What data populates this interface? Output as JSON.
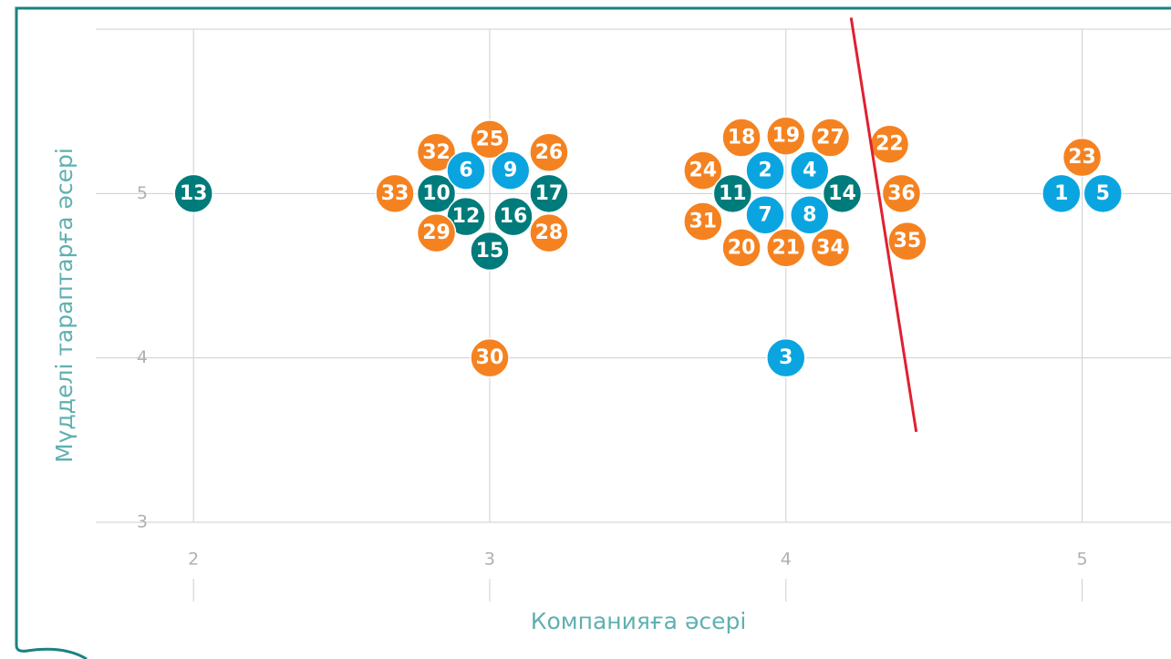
{
  "chart_data": {
    "type": "scatter",
    "x_label": "Компанияға әсері",
    "y_label": "Мүдделі тараптарға әсері",
    "xlim": [
      1.67,
      5.3
    ],
    "xticks": [
      2,
      3,
      4,
      5
    ],
    "ylim": [
      3,
      6
    ],
    "yticks": [
      3,
      4,
      5
    ],
    "grid": true,
    "points": [
      {
        "label": "13",
        "x": 2.0,
        "y": 5.0,
        "color": "#007b7b"
      },
      {
        "label": "33",
        "x": 2.68,
        "y": 5.0,
        "color": "#f58220"
      },
      {
        "label": "10",
        "x": 2.82,
        "y": 5.0,
        "color": "#007b7b"
      },
      {
        "label": "32",
        "x": 2.82,
        "y": 5.25,
        "color": "#f58220"
      },
      {
        "label": "6",
        "x": 2.92,
        "y": 5.14,
        "color": "#0aa5e0"
      },
      {
        "label": "25",
        "x": 3.0,
        "y": 5.33,
        "color": "#f58220"
      },
      {
        "label": "9",
        "x": 3.07,
        "y": 5.14,
        "color": "#0aa5e0"
      },
      {
        "label": "26",
        "x": 3.2,
        "y": 5.25,
        "color": "#f58220"
      },
      {
        "label": "17",
        "x": 3.2,
        "y": 5.0,
        "color": "#007b7b"
      },
      {
        "label": "12",
        "x": 2.92,
        "y": 4.86,
        "color": "#007b7b"
      },
      {
        "label": "16",
        "x": 3.08,
        "y": 4.86,
        "color": "#007b7b"
      },
      {
        "label": "29",
        "x": 2.82,
        "y": 4.76,
        "color": "#f58220"
      },
      {
        "label": "28",
        "x": 3.2,
        "y": 4.76,
        "color": "#f58220"
      },
      {
        "label": "15",
        "x": 3.0,
        "y": 4.65,
        "color": "#007b7b"
      },
      {
        "label": "30",
        "x": 3.0,
        "y": 4.0,
        "color": "#f58220"
      },
      {
        "label": "18",
        "x": 3.85,
        "y": 5.34,
        "color": "#f58220"
      },
      {
        "label": "19",
        "x": 4.0,
        "y": 5.35,
        "color": "#f58220"
      },
      {
        "label": "27",
        "x": 4.15,
        "y": 5.34,
        "color": "#f58220"
      },
      {
        "label": "22",
        "x": 4.35,
        "y": 5.3,
        "color": "#f58220"
      },
      {
        "label": "24",
        "x": 3.72,
        "y": 5.14,
        "color": "#f58220"
      },
      {
        "label": "2",
        "x": 3.93,
        "y": 5.14,
        "color": "#0aa5e0"
      },
      {
        "label": "4",
        "x": 4.08,
        "y": 5.14,
        "color": "#0aa5e0"
      },
      {
        "label": "11",
        "x": 3.82,
        "y": 5.0,
        "color": "#007b7b"
      },
      {
        "label": "14",
        "x": 4.19,
        "y": 5.0,
        "color": "#007b7b"
      },
      {
        "label": "36",
        "x": 4.39,
        "y": 5.0,
        "color": "#f58220"
      },
      {
        "label": "31",
        "x": 3.72,
        "y": 4.83,
        "color": "#f58220"
      },
      {
        "label": "7",
        "x": 3.93,
        "y": 4.87,
        "color": "#0aa5e0"
      },
      {
        "label": "8",
        "x": 4.08,
        "y": 4.87,
        "color": "#0aa5e0"
      },
      {
        "label": "20",
        "x": 3.85,
        "y": 4.67,
        "color": "#f58220"
      },
      {
        "label": "21",
        "x": 4.0,
        "y": 4.67,
        "color": "#f58220"
      },
      {
        "label": "34",
        "x": 4.15,
        "y": 4.67,
        "color": "#f58220"
      },
      {
        "label": "35",
        "x": 4.41,
        "y": 4.71,
        "color": "#f58220"
      },
      {
        "label": "3",
        "x": 4.0,
        "y": 4.0,
        "color": "#0aa5e0"
      },
      {
        "label": "23",
        "x": 5.0,
        "y": 5.22,
        "color": "#f58220"
      },
      {
        "label": "1",
        "x": 4.93,
        "y": 5.0,
        "color": "#0aa5e0"
      },
      {
        "label": "5",
        "x": 5.07,
        "y": 5.0,
        "color": "#0aa5e0"
      }
    ],
    "line": {
      "x": [
        4.22,
        4.44
      ],
      "y": [
        6.07,
        3.55
      ],
      "color": "#e02030"
    }
  }
}
